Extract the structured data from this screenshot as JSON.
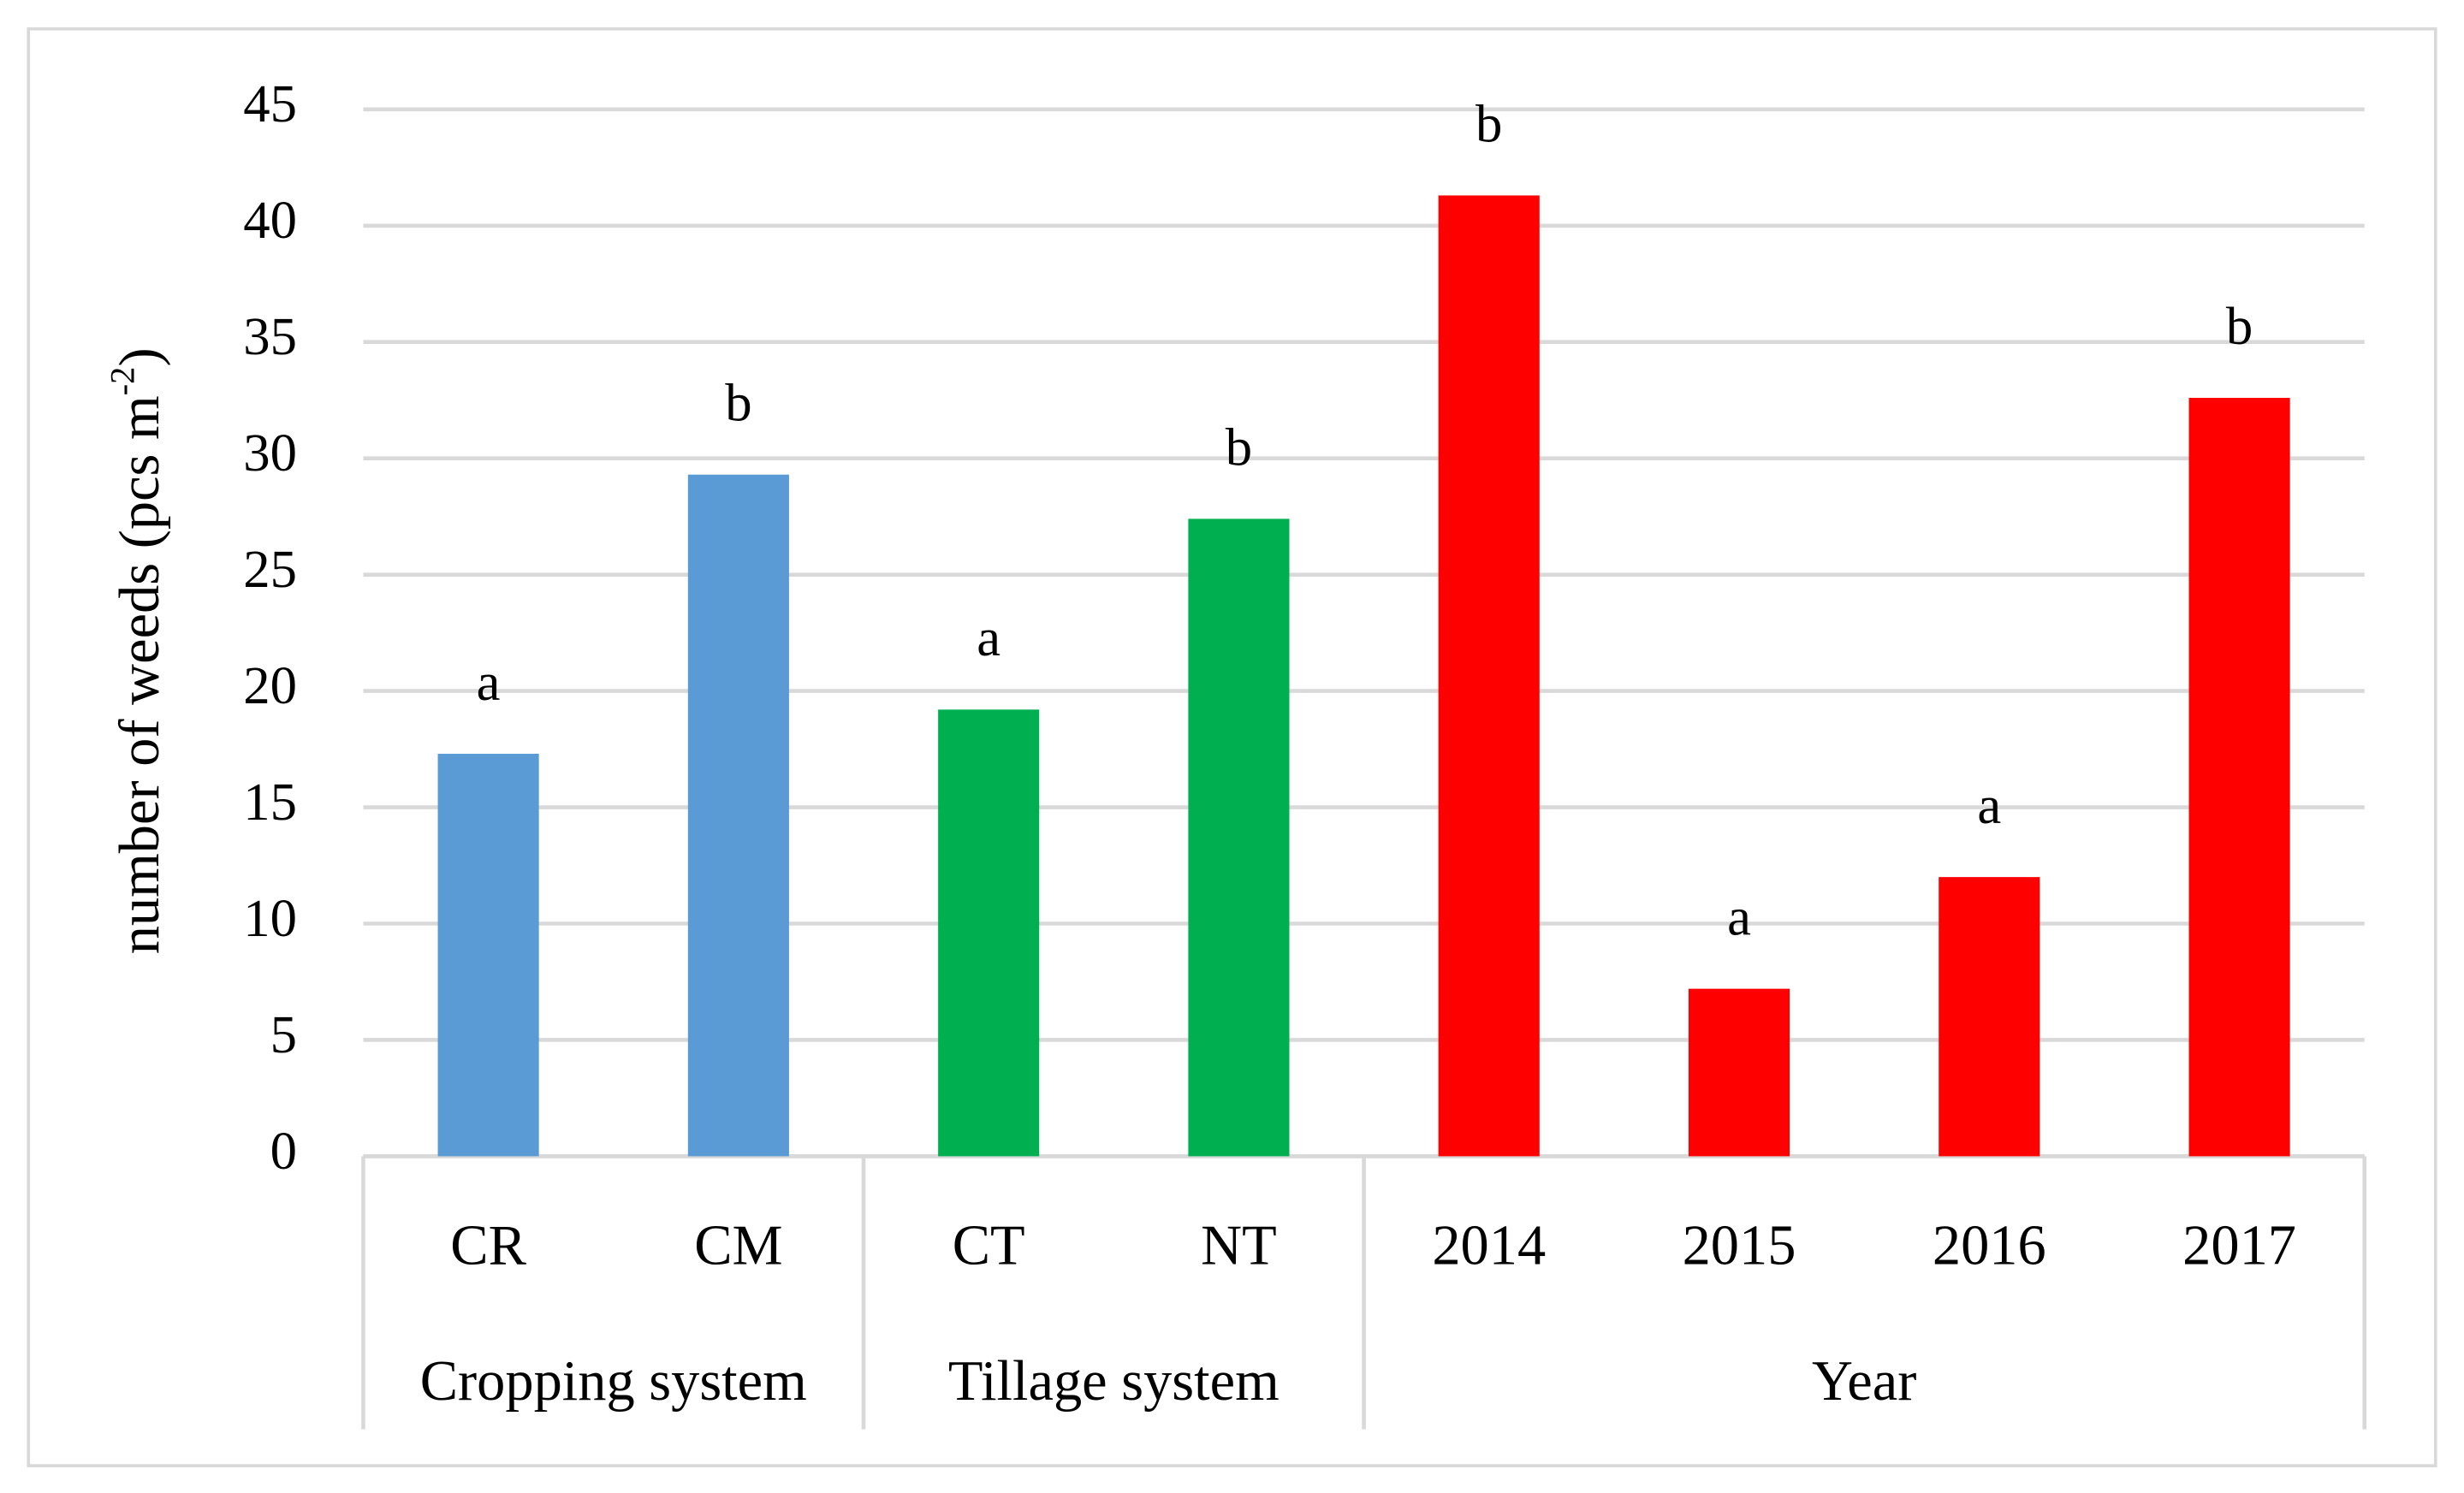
{
  "chart_data": {
    "type": "bar",
    "y_label": {
      "text": "number of weeds (pcs m",
      "superscript": "-2",
      "suffix": ")"
    },
    "categories": [
      "CR",
      "CM",
      "CT",
      "NT",
      "2014",
      "2015",
      "2016",
      "2017"
    ],
    "values": [
      17.3,
      29.3,
      19.2,
      27.4,
      41.3,
      7.2,
      12.0,
      32.6
    ],
    "value_labels": [
      "a",
      "b",
      "a",
      "b",
      "b",
      "a",
      "a",
      "b"
    ],
    "colors": [
      "#5b9bd5",
      "#5b9bd5",
      "#00b050",
      "#00b050",
      "#ff0000",
      "#ff0000",
      "#ff0000",
      "#ff0000"
    ],
    "groups": [
      {
        "label": "Cropping system",
        "size": 2
      },
      {
        "label": "Tillage system",
        "size": 2
      },
      {
        "label": "Year",
        "size": 4
      }
    ],
    "ylim": [
      0,
      45
    ],
    "yticks": [
      0,
      5,
      10,
      15,
      20,
      25,
      30,
      35,
      40,
      45
    ],
    "grid": true
  }
}
